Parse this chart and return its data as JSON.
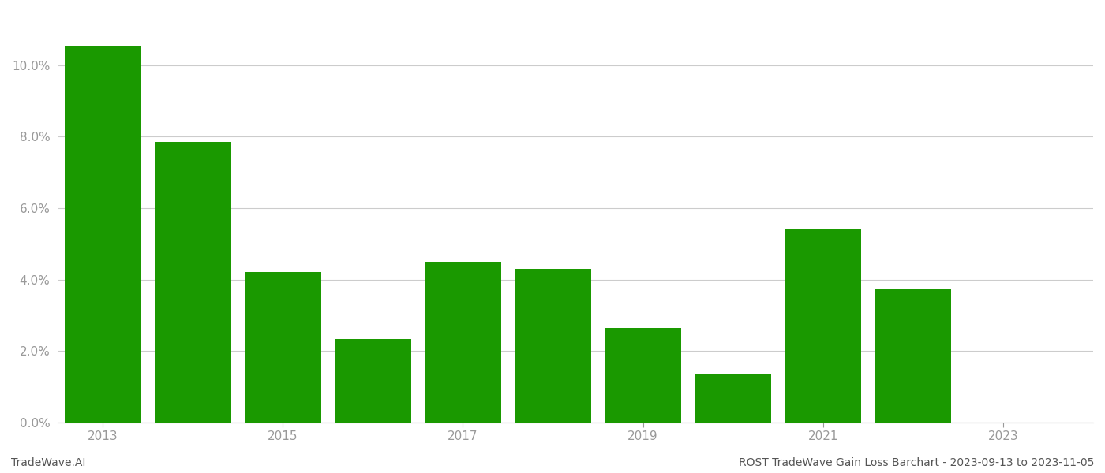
{
  "years": [
    2013,
    2014,
    2015,
    2016,
    2017,
    2018,
    2019,
    2020,
    2021,
    2022
  ],
  "values": [
    0.1055,
    0.0785,
    0.042,
    0.0233,
    0.045,
    0.043,
    0.0265,
    0.0133,
    0.0543,
    0.0372
  ],
  "bar_color": "#1a9900",
  "background_color": "#ffffff",
  "footer_left": "TradeWave.AI",
  "footer_right": "ROST TradeWave Gain Loss Barchart - 2023-09-13 to 2023-11-05",
  "ylim": [
    0,
    0.115
  ],
  "yticks": [
    0.0,
    0.02,
    0.04,
    0.06,
    0.08,
    0.1
  ],
  "grid_color": "#cccccc",
  "tick_color": "#999999",
  "axis_label_fontsize": 11,
  "footer_fontsize": 10,
  "bar_width": 0.85,
  "xlim_left": -0.5,
  "xlim_right": 11.0
}
